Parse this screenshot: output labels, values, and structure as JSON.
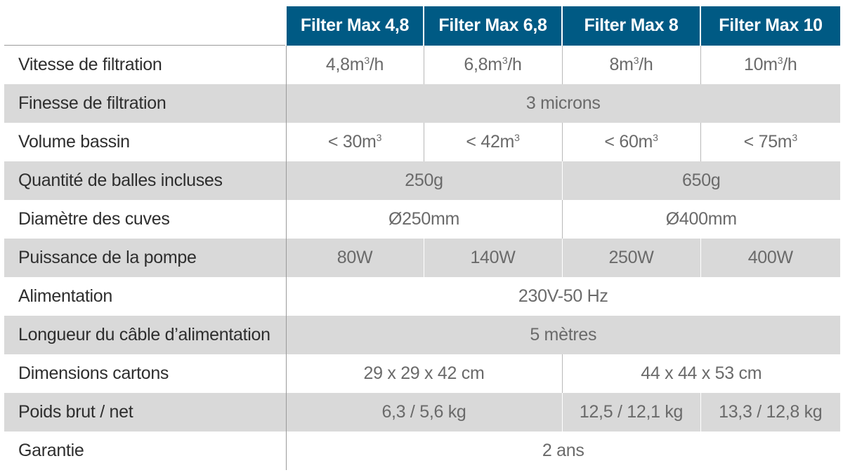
{
  "header": [
    "Filter Max 4,8",
    "Filter Max 6,8",
    "Filter Max 8",
    "Filter Max 10"
  ],
  "rows": [
    {
      "label": "Vitesse de filtration",
      "cells": [
        {
          "text": "4,8m",
          "sup": "3",
          "tail": "/h",
          "span": 1
        },
        {
          "text": "6,8m",
          "sup": "3",
          "tail": "/h",
          "span": 1
        },
        {
          "text": "8m",
          "sup": "3",
          "tail": "/h",
          "span": 1
        },
        {
          "text": "10m",
          "sup": "3",
          "tail": "/h",
          "span": 1
        }
      ]
    },
    {
      "label": "Finesse de filtration",
      "cells": [
        {
          "text": "3 microns",
          "span": 4
        }
      ]
    },
    {
      "label": "Volume bassin",
      "cells": [
        {
          "text": "< 30m",
          "sup": "3",
          "span": 1
        },
        {
          "text": "< 42m",
          "sup": "3",
          "span": 1
        },
        {
          "text": "< 60m",
          "sup": "3",
          "span": 1
        },
        {
          "text": "< 75m",
          "sup": "3",
          "span": 1
        }
      ]
    },
    {
      "label": "Quantité de balles incluses",
      "cells": [
        {
          "text": "250g",
          "span": 2
        },
        {
          "text": "650g",
          "span": 2
        }
      ]
    },
    {
      "label": "Diamètre des cuves",
      "cells": [
        {
          "text": "Ø250mm",
          "span": 2
        },
        {
          "text": "Ø400mm",
          "span": 2
        }
      ]
    },
    {
      "label": "Puissance de la pompe",
      "cells": [
        {
          "text": "80W",
          "span": 1
        },
        {
          "text": "140W",
          "span": 1
        },
        {
          "text": "250W",
          "span": 1
        },
        {
          "text": "400W",
          "span": 1
        }
      ]
    },
    {
      "label": "Alimentation",
      "cells": [
        {
          "text": "230V-50 Hz",
          "span": 4
        }
      ]
    },
    {
      "label": "Longueur du câble d’alimentation",
      "cells": [
        {
          "text": "5 mètres",
          "span": 4
        }
      ]
    },
    {
      "label": "Dimensions cartons",
      "cells": [
        {
          "text": "29 x 29 x 42 cm",
          "span": 2
        },
        {
          "text": "44 x 44 x 53 cm",
          "span": 2
        }
      ]
    },
    {
      "label": "Poids brut / net",
      "cells": [
        {
          "text": "6,3 / 5,6 kg",
          "span": 2
        },
        {
          "text": "12,5 / 12,1 kg",
          "span": 1
        },
        {
          "text": "13,3 / 12,8 kg",
          "span": 1
        }
      ]
    },
    {
      "label": "Garantie",
      "cells": [
        {
          "text": "2 ans",
          "span": 4
        }
      ]
    }
  ]
}
